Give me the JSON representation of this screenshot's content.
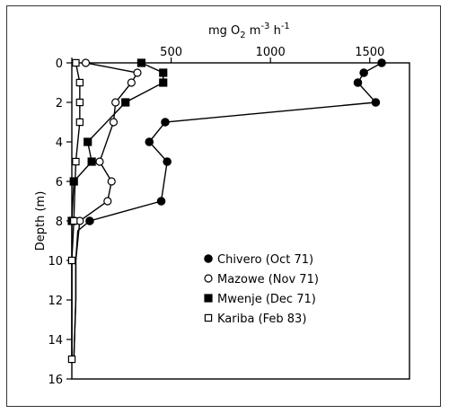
{
  "chart_data": {
    "type": "line",
    "title": "",
    "xlabel": "mg O2 m-3 h-1",
    "xlabel_parts": {
      "pre": "mg O",
      "sub": "2",
      "mid": " m",
      "sup1": "-3",
      "mid2": " h",
      "sup2": "-1"
    },
    "ylabel": "Depth (m)",
    "xlim": [
      0,
      1700
    ],
    "ylim": [
      16,
      0
    ],
    "x_ticks": [
      0,
      500,
      1000,
      1500
    ],
    "x_tick_labels": [
      "",
      "500",
      "1000",
      "1500"
    ],
    "y_ticks": [
      0,
      2,
      4,
      6,
      8,
      10,
      12,
      14,
      16
    ],
    "y_tick_labels": [
      "0",
      "2",
      "4",
      "6",
      "8",
      "10",
      "12",
      "14",
      "16"
    ],
    "x_axis_position": "top",
    "grid": false,
    "legend_position": "lower-right",
    "series": [
      {
        "name": "Chivero (Oct 71)",
        "marker": "filled-circle",
        "points": [
          [
            1560,
            0
          ],
          [
            1470,
            0.5
          ],
          [
            1440,
            1
          ],
          [
            1530,
            2
          ],
          [
            470,
            3
          ],
          [
            390,
            4
          ],
          [
            480,
            5
          ],
          [
            450,
            7
          ],
          [
            90,
            8
          ],
          [
            30,
            8.5
          ],
          [
            20,
            10
          ],
          [
            20,
            12
          ],
          [
            10,
            15
          ]
        ]
      },
      {
        "name": "Mazowe (Nov 71)",
        "marker": "open-circle",
        "points": [
          [
            70,
            0
          ],
          [
            330,
            0.5
          ],
          [
            300,
            1
          ],
          [
            220,
            2
          ],
          [
            210,
            3
          ],
          [
            140,
            5
          ],
          [
            200,
            6
          ],
          [
            180,
            7
          ],
          [
            40,
            8
          ],
          [
            20,
            10
          ],
          [
            20,
            12
          ],
          [
            10,
            15
          ]
        ]
      },
      {
        "name": "Mwenje (Dec 71)",
        "marker": "filled-square",
        "points": [
          [
            350,
            0
          ],
          [
            460,
            0.5
          ],
          [
            460,
            1
          ],
          [
            270,
            2
          ],
          [
            80,
            4
          ],
          [
            100,
            5
          ],
          [
            10,
            6
          ],
          [
            0,
            8
          ],
          [
            0,
            10
          ],
          [
            0,
            12
          ],
          [
            0,
            15
          ]
        ]
      },
      {
        "name": "Kariba (Feb 83)",
        "marker": "open-square",
        "points": [
          [
            20,
            0
          ],
          [
            40,
            1
          ],
          [
            40,
            2
          ],
          [
            40,
            3
          ],
          [
            20,
            5
          ],
          [
            10,
            8
          ],
          [
            0,
            10
          ],
          [
            0,
            12
          ],
          [
            0,
            15
          ]
        ]
      }
    ]
  }
}
